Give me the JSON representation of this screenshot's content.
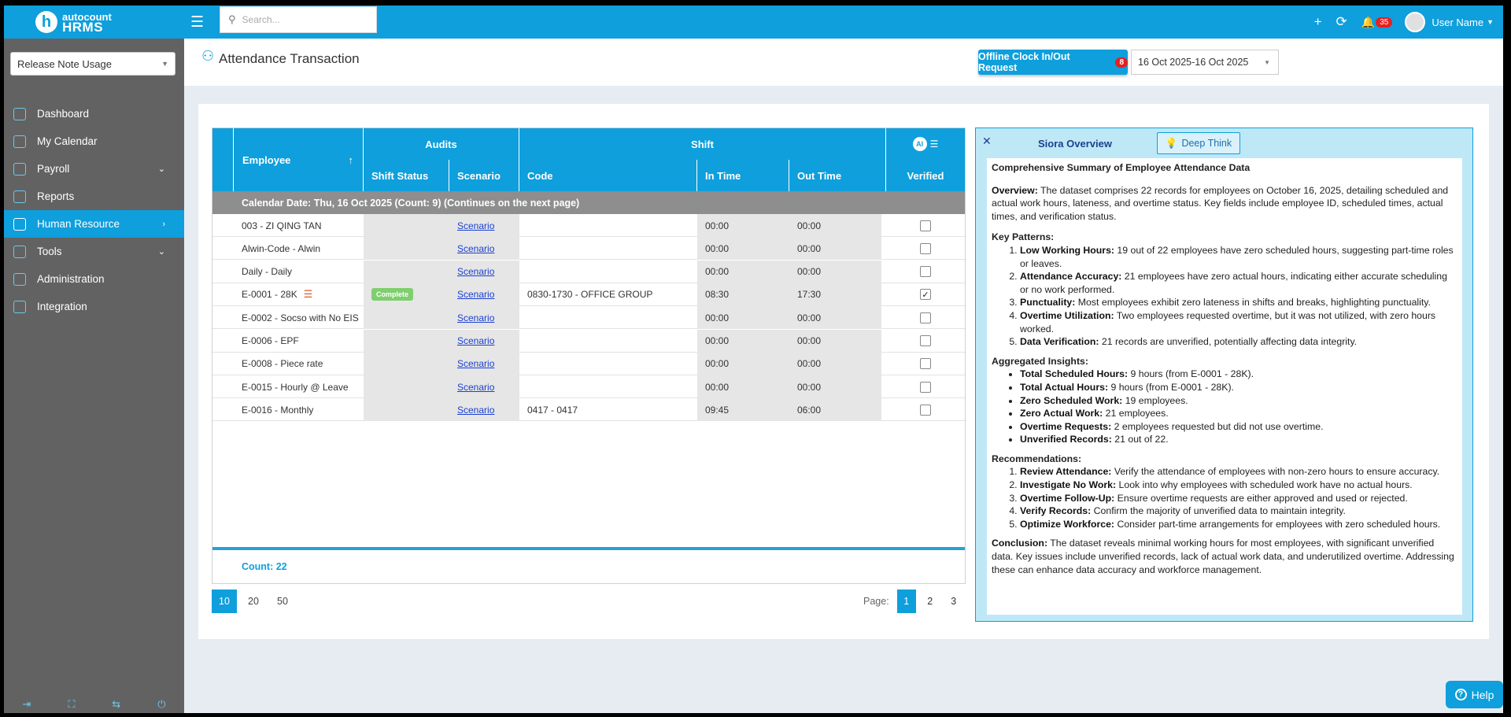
{
  "logo": {
    "letter": "h",
    "line1": "autocount",
    "line2": "HRMS"
  },
  "sidebar": {
    "select_value": "Release Note Usage",
    "items": [
      {
        "label": "Dashboard",
        "icon": "dashboard-icon",
        "expand": ""
      },
      {
        "label": "My Calendar",
        "icon": "calendar-icon",
        "expand": ""
      },
      {
        "label": "Payroll",
        "icon": "payroll-icon",
        "expand": "⌄"
      },
      {
        "label": "Reports",
        "icon": "reports-icon",
        "expand": ""
      },
      {
        "label": "Human Resource",
        "icon": "human-resource-icon",
        "expand": "›"
      },
      {
        "label": "Tools",
        "icon": "tools-icon",
        "expand": "⌄"
      },
      {
        "label": "Administration",
        "icon": "administration-icon",
        "expand": ""
      },
      {
        "label": "Integration",
        "icon": "integration-icon",
        "expand": ""
      }
    ]
  },
  "topbar": {
    "search_placeholder": "Search...",
    "notification_count": "35",
    "user_name": "User Name"
  },
  "header": {
    "title": "Attendance Transaction",
    "offline_button": "Offline Clock In/Out Request",
    "offline_count": "8",
    "date_range": "16 Oct 2025-16 Oct 2025"
  },
  "table": {
    "headers": {
      "employee": "Employee",
      "audits": "Audits",
      "shift": "Shift",
      "ai": "AI",
      "shift_status": "Shift Status",
      "scenario": "Scenario",
      "code": "Code",
      "in_time": "In Time",
      "out_time": "Out Time",
      "verified": "Verified"
    },
    "group_label": "Calendar Date: Thu, 16 Oct 2025 (Count: 9) (Continues on the next page)",
    "rows": [
      {
        "employee": "003 - ZI QING TAN",
        "status": "",
        "scenario": "Scenario",
        "code": "",
        "in": "00:00",
        "out": "00:00",
        "verified": ""
      },
      {
        "employee": "Alwin-Code - Alwin",
        "status": "",
        "scenario": "Scenario",
        "code": "",
        "in": "00:00",
        "out": "00:00",
        "verified": ""
      },
      {
        "employee": "Daily - Daily",
        "status": "",
        "scenario": "Scenario",
        "code": "",
        "in": "00:00",
        "out": "00:00",
        "verified": ""
      },
      {
        "employee": "E-0001 - 28K",
        "status": "Complete",
        "scenario": "Scenario",
        "code": "0830-1730 - OFFICE GROUP",
        "in": "08:30",
        "out": "17:30",
        "verified": "✓"
      },
      {
        "employee": "E-0002 - Socso with No EIS",
        "status": "",
        "scenario": "Scenario",
        "code": "",
        "in": "00:00",
        "out": "00:00",
        "verified": ""
      },
      {
        "employee": "E-0006 - EPF",
        "status": "",
        "scenario": "Scenario",
        "code": "",
        "in": "00:00",
        "out": "00:00",
        "verified": ""
      },
      {
        "employee": "E-0008 - Piece rate",
        "status": "",
        "scenario": "Scenario",
        "code": "",
        "in": "00:00",
        "out": "00:00",
        "verified": ""
      },
      {
        "employee": "E-0015 - Hourly @ Leave",
        "status": "",
        "scenario": "Scenario",
        "code": "",
        "in": "00:00",
        "out": "00:00",
        "verified": ""
      },
      {
        "employee": "E-0016 - Monthly",
        "status": "",
        "scenario": "Scenario",
        "code": "0417 - 0417",
        "in": "09:45",
        "out": "06:00",
        "verified": ""
      }
    ],
    "count_label": "Count: 22"
  },
  "pagination": {
    "sizes": [
      "10",
      "20",
      "50"
    ],
    "page_label": "Page:",
    "pages": [
      "1",
      "2",
      "3"
    ]
  },
  "ai_panel": {
    "title": "Siora Overview",
    "deep_think": "Deep Think",
    "heading": "Comprehensive Summary of Employee Attendance Data",
    "overview_label": "Overview:",
    "overview_text": "The dataset comprises 22 records for employees on October 16, 2025, detailing scheduled and actual work hours, lateness, and overtime status. Key fields include employee ID, scheduled times, actual times, and verification status.",
    "key_patterns_title": "Key Patterns:",
    "key_patterns": [
      {
        "b": "Low Working Hours:",
        "t": " 19 out of 22 employees have zero scheduled hours, suggesting part-time roles or leaves."
      },
      {
        "b": "Attendance Accuracy:",
        "t": " 21 employees have zero actual hours, indicating either accurate scheduling or no work performed."
      },
      {
        "b": "Punctuality:",
        "t": " Most employees exhibit zero lateness in shifts and breaks, highlighting punctuality."
      },
      {
        "b": "Overtime Utilization:",
        "t": " Two employees requested overtime, but it was not utilized, with zero hours worked."
      },
      {
        "b": "Data Verification:",
        "t": " 21 records are unverified, potentially affecting data integrity."
      }
    ],
    "insights_title": "Aggregated Insights:",
    "insights": [
      {
        "b": "Total Scheduled Hours:",
        "t": " 9 hours (from E-0001 - 28K)."
      },
      {
        "b": "Total Actual Hours:",
        "t": " 9 hours (from E-0001 - 28K)."
      },
      {
        "b": "Zero Scheduled Work:",
        "t": " 19 employees."
      },
      {
        "b": "Zero Actual Work:",
        "t": " 21 employees."
      },
      {
        "b": "Overtime Requests:",
        "t": " 2 employees requested but did not use overtime."
      },
      {
        "b": "Unverified Records:",
        "t": " 21 out of 22."
      }
    ],
    "recs_title": "Recommendations:",
    "recs": [
      {
        "b": "Review Attendance:",
        "t": " Verify the attendance of employees with non-zero hours to ensure accuracy."
      },
      {
        "b": "Investigate No Work:",
        "t": " Look into why employees with scheduled work have no actual hours."
      },
      {
        "b": "Overtime Follow-Up:",
        "t": " Ensure overtime requests are either approved and used or rejected."
      },
      {
        "b": "Verify Records:",
        "t": " Confirm the majority of unverified data to maintain integrity."
      },
      {
        "b": "Optimize Workforce:",
        "t": " Consider part-time arrangements for employees with zero scheduled hours."
      }
    ],
    "conclusion_label": "Conclusion:",
    "conclusion_text": "The dataset reveals minimal working hours for most employees, with significant unverified data. Key issues include unverified records, lack of actual work data, and underutilized overtime. Addressing these can enhance data accuracy and workforce management."
  },
  "help": {
    "label": "Help"
  },
  "colors": {
    "accent": "#0e9fdc",
    "sidebar": "#626262",
    "badge": "#e52020",
    "complete": "#7fcf6e"
  }
}
